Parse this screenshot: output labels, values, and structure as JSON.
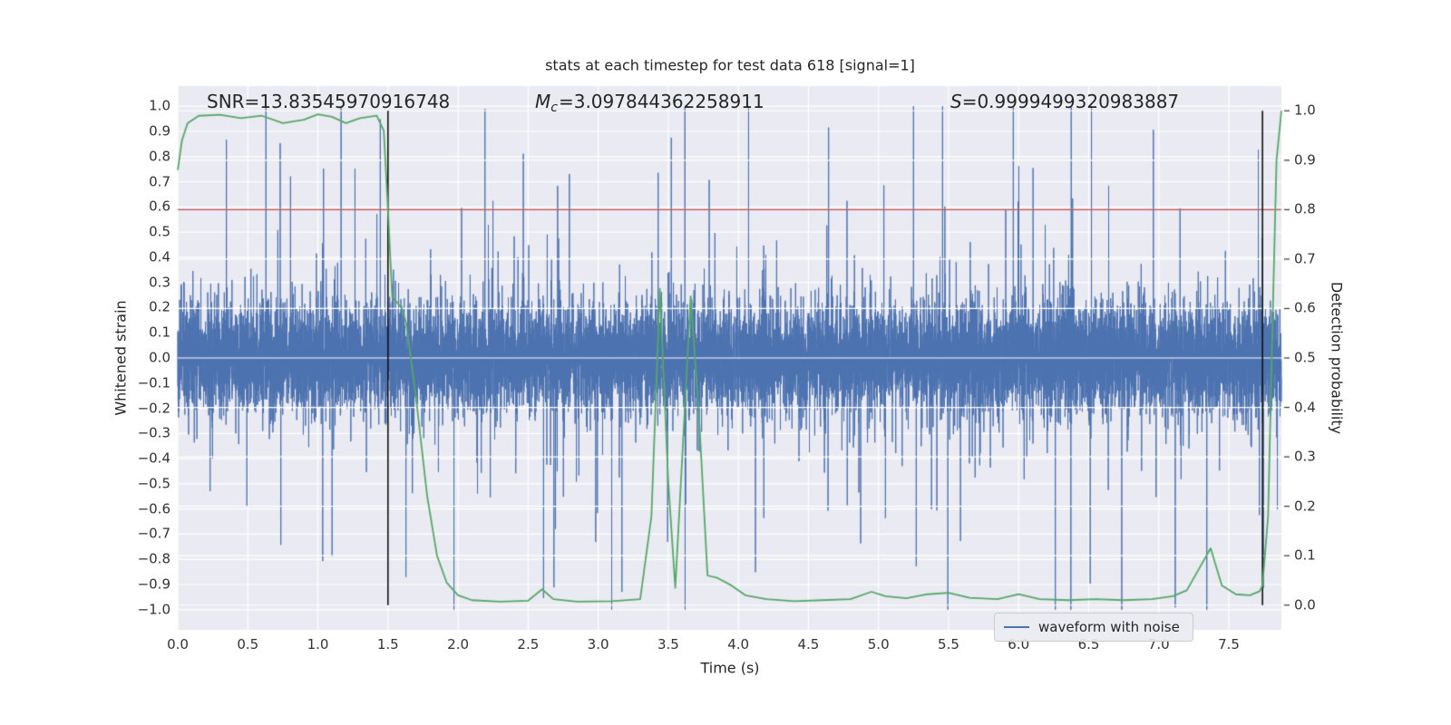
{
  "figure": {
    "title": "stats at each timestep for test data 618 [signal=1]",
    "annotations": {
      "snr": {
        "text": "SNR=13.83545970916748"
      },
      "chirp_mass": {
        "symbol": "M",
        "subscript": "c",
        "value": "=3.097844362258911"
      },
      "significance": {
        "symbol": "S",
        "value": "=0.9999499320983887"
      }
    },
    "axes": {
      "xlabel": "Time (s)",
      "ylabel_left": "Whitened strain",
      "ylabel_right": "Detection probability"
    },
    "legend": {
      "items": [
        {
          "label": "waveform with noise",
          "color": "#4c72b0"
        }
      ]
    }
  },
  "chart_data": {
    "type": "line",
    "title": "stats at each timestep for test data 618 [signal=1]",
    "xlabel": "Time (s)",
    "ylabel_left": "Whitened strain",
    "ylabel_right": "Detection probability",
    "xlim": [
      0,
      7.875
    ],
    "ylim_left": [
      -1.08,
      1.08
    ],
    "ylim_right": [
      -0.05,
      1.05
    ],
    "grid": true,
    "background": "#eaeaf2",
    "grid_color": "#ffffff",
    "x_ticks": [
      0.0,
      0.5,
      1.0,
      1.5,
      2.0,
      2.5,
      3.0,
      3.5,
      4.0,
      4.5,
      5.0,
      5.5,
      6.0,
      6.5,
      7.0,
      7.5
    ],
    "x_tick_labels": [
      "0.0",
      "0.5",
      "1.0",
      "1.5",
      "2.0",
      "2.5",
      "3.0",
      "3.5",
      "4.0",
      "4.5",
      "5.0",
      "5.5",
      "6.0",
      "6.5",
      "7.0",
      "7.5"
    ],
    "y_ticks_left": [
      1.0,
      0.9,
      0.8,
      0.7,
      0.6,
      0.5,
      0.4,
      0.3,
      0.2,
      0.1,
      0.0,
      -0.1,
      -0.2,
      -0.3,
      -0.4,
      -0.5,
      -0.6,
      -0.7,
      -0.8,
      -0.9,
      -1.0
    ],
    "y_tick_labels_left": [
      "1.0",
      "0.9",
      "0.8",
      "0.7",
      "0.6",
      "0.5",
      "0.4",
      "0.3",
      "0.2",
      "0.1",
      "0.0",
      "−0.1",
      "−0.2",
      "−0.3",
      "−0.4",
      "−0.5",
      "−0.6",
      "−0.7",
      "−0.8",
      "−0.9",
      "−1.0"
    ],
    "y_ticks_right": [
      1.0,
      0.9,
      0.8,
      0.7,
      0.6,
      0.5,
      0.4,
      0.3,
      0.2,
      0.1,
      0.0
    ],
    "y_tick_labels_right": [
      "1.0",
      "0.9",
      "0.8",
      "0.7",
      "0.6",
      "0.5",
      "0.4",
      "0.3",
      "0.2",
      "0.1",
      "0.0"
    ],
    "threshold": {
      "axis": "right",
      "y": 0.8,
      "color": "#c44e52",
      "meaning": "detection probability threshold"
    },
    "vlines": {
      "x": [
        1.5,
        7.74
      ],
      "color": "#111111",
      "span_right": [
        0.0,
        1.0
      ]
    },
    "series": [
      {
        "name": "waveform with noise",
        "axis": "left",
        "color": "#4c72b0",
        "style": "noise",
        "description": "zero-mean whitened strain noise; dense core band ≈ ±0.22, intermittent spikes up to ±1.0",
        "n_points": 12000,
        "core_std": 0.11,
        "spike_prob": 0.03,
        "spike_scale": [
          1.8,
          6.0
        ],
        "clip": [
          -1,
          1
        ],
        "seed": 618
      },
      {
        "name": "detection probability",
        "axis": "right",
        "color": "#55a868",
        "style": "keypoints",
        "points": [
          [
            0.0,
            0.88
          ],
          [
            0.03,
            0.94
          ],
          [
            0.07,
            0.975
          ],
          [
            0.15,
            0.99
          ],
          [
            0.3,
            0.992
          ],
          [
            0.45,
            0.985
          ],
          [
            0.6,
            0.99
          ],
          [
            0.75,
            0.975
          ],
          [
            0.9,
            0.982
          ],
          [
            1.0,
            0.993
          ],
          [
            1.1,
            0.988
          ],
          [
            1.2,
            0.975
          ],
          [
            1.3,
            0.985
          ],
          [
            1.42,
            0.99
          ],
          [
            1.47,
            0.96
          ],
          [
            1.5,
            0.8
          ],
          [
            1.53,
            0.625
          ],
          [
            1.6,
            0.6
          ],
          [
            1.63,
            0.57
          ],
          [
            1.7,
            0.42
          ],
          [
            1.78,
            0.22
          ],
          [
            1.85,
            0.1
          ],
          [
            1.92,
            0.045
          ],
          [
            2.0,
            0.02
          ],
          [
            2.1,
            0.01
          ],
          [
            2.3,
            0.007
          ],
          [
            2.5,
            0.009
          ],
          [
            2.6,
            0.032
          ],
          [
            2.68,
            0.012
          ],
          [
            2.85,
            0.007
          ],
          [
            3.1,
            0.008
          ],
          [
            3.3,
            0.012
          ],
          [
            3.38,
            0.18
          ],
          [
            3.44,
            0.64
          ],
          [
            3.5,
            0.25
          ],
          [
            3.55,
            0.035
          ],
          [
            3.6,
            0.3
          ],
          [
            3.66,
            0.625
          ],
          [
            3.72,
            0.38
          ],
          [
            3.78,
            0.06
          ],
          [
            3.85,
            0.055
          ],
          [
            3.95,
            0.04
          ],
          [
            4.05,
            0.02
          ],
          [
            4.2,
            0.012
          ],
          [
            4.4,
            0.008
          ],
          [
            4.6,
            0.01
          ],
          [
            4.8,
            0.012
          ],
          [
            4.95,
            0.027
          ],
          [
            5.05,
            0.018
          ],
          [
            5.2,
            0.014
          ],
          [
            5.35,
            0.022
          ],
          [
            5.5,
            0.025
          ],
          [
            5.65,
            0.015
          ],
          [
            5.85,
            0.012
          ],
          [
            6.0,
            0.022
          ],
          [
            6.15,
            0.012
          ],
          [
            6.35,
            0.01
          ],
          [
            6.55,
            0.012
          ],
          [
            6.75,
            0.01
          ],
          [
            6.95,
            0.012
          ],
          [
            7.1,
            0.018
          ],
          [
            7.2,
            0.03
          ],
          [
            7.3,
            0.08
          ],
          [
            7.37,
            0.115
          ],
          [
            7.45,
            0.04
          ],
          [
            7.55,
            0.022
          ],
          [
            7.65,
            0.02
          ],
          [
            7.72,
            0.028
          ],
          [
            7.74,
            0.04
          ],
          [
            7.78,
            0.18
          ],
          [
            7.81,
            0.55
          ],
          [
            7.84,
            0.9
          ],
          [
            7.875,
            1.0
          ]
        ]
      }
    ]
  }
}
